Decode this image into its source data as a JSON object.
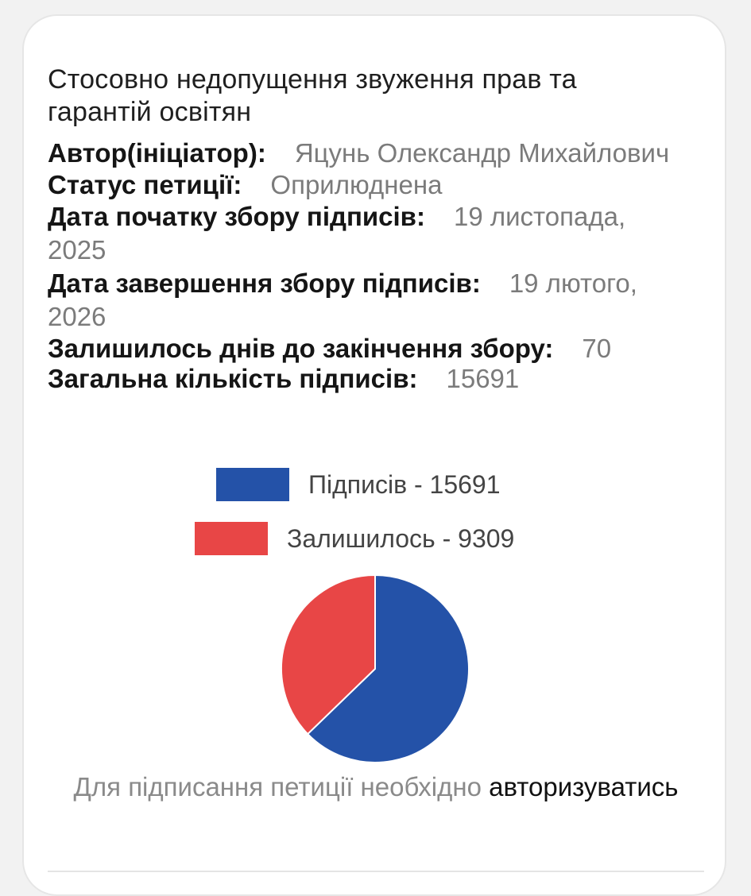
{
  "petition": {
    "title": "Стосовно недопущення звуження прав та гарантій освітян",
    "author_label": "Автор(ініціатор):",
    "author_value": "Яцунь Олександр Михайлович",
    "status_label": "Статус петиції:",
    "status_value": "Оприлюднена",
    "start_label": "Дата початку збору підписів:",
    "start_value": "19 листопада, 2025",
    "end_label": "Дата завершення збору підписів:",
    "end_value": "19 лютого, 2026",
    "days_label": "Залишилось днів до закінчення збору:",
    "days_value": "70",
    "total_label": "Загальна кількість підписів:",
    "total_value": "15691"
  },
  "chart_data": {
    "type": "pie",
    "categories": [
      "Підписів",
      "Залишилось"
    ],
    "values": [
      15691,
      9309
    ],
    "legend_labels": [
      "Підписів - 15691",
      "Залишилось - 9309"
    ],
    "colors": [
      "#2452a8",
      "#e84646"
    ],
    "legend_position": "top"
  },
  "signin": {
    "prefix": "Для підписання петиції необхідно",
    "link": "авторизуватись"
  }
}
